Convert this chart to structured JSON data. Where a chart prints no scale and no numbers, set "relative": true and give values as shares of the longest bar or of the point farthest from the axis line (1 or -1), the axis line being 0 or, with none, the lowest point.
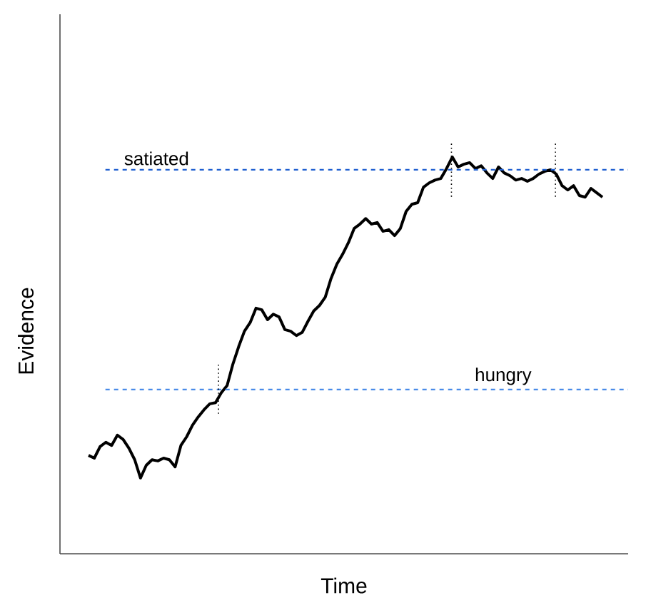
{
  "chart_data": {
    "type": "line",
    "relative": true,
    "xlabel": "Time",
    "ylabel": "Evidence",
    "categories": [
      null,
      null,
      null,
      null,
      null,
      null,
      null,
      null,
      null,
      null,
      null,
      null,
      null,
      null,
      null,
      null,
      null,
      null,
      null,
      null,
      null,
      null,
      null,
      null,
      null,
      null,
      null,
      null,
      null,
      null,
      null,
      null,
      null,
      null,
      null,
      null,
      null,
      null,
      null,
      null,
      null,
      null,
      null,
      null,
      null,
      null,
      null,
      null,
      null,
      null,
      null,
      null,
      null,
      null,
      null,
      null,
      null,
      null,
      null,
      null,
      null,
      null,
      null,
      null,
      null,
      null,
      null,
      null,
      null,
      null,
      null,
      null,
      null,
      null,
      null,
      null,
      null,
      null,
      null,
      null,
      null,
      null,
      null,
      null,
      null,
      null,
      null,
      null,
      null,
      null
    ],
    "series": [
      {
        "color": "#000000",
        "values": [
          0.248,
          0.241,
          0.27,
          0.281,
          0.273,
          0.299,
          0.288,
          0.266,
          0.237,
          0.191,
          0.223,
          0.237,
          0.234,
          0.241,
          0.237,
          0.219,
          0.273,
          0.295,
          0.324,
          0.345,
          0.363,
          0.378,
          0.381,
          0.406,
          0.424,
          0.478,
          0.522,
          0.561,
          0.583,
          0.619,
          0.615,
          0.59,
          0.604,
          0.597,
          0.565,
          0.561,
          0.55,
          0.558,
          0.586,
          0.612,
          0.626,
          0.647,
          0.694,
          0.73,
          0.755,
          0.784,
          0.82,
          0.831,
          0.845,
          0.831,
          0.835,
          0.813,
          0.817,
          0.802,
          0.82,
          0.863,
          0.881,
          0.885,
          0.924,
          0.935,
          0.942,
          0.946,
          0.971,
          1,
          0.975,
          0.982,
          0.986,
          0.971,
          0.978,
          0.96,
          0.946,
          0.975,
          0.96,
          0.953,
          0.942,
          0.946,
          0.939,
          0.946,
          0.957,
          0.964,
          0.968,
          0.957,
          0.928,
          0.917,
          0.928,
          0.903,
          0.899,
          0.921,
          0.91,
          0.899
        ]
      }
    ],
    "ref_lines": [
      {
        "axis": "y",
        "value": 0.968,
        "label": "satiated",
        "color": "#1f5fd0",
        "line_style": "dashed"
      },
      {
        "axis": "y",
        "value": 0.414,
        "label": "hungry",
        "color": "#4a8be8",
        "line_style": "dashed"
      }
    ]
  }
}
